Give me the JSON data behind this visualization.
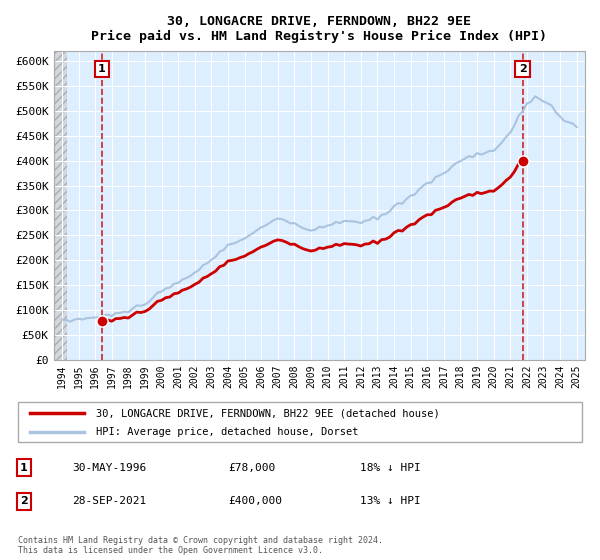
{
  "title": "30, LONGACRE DRIVE, FERNDOWN, BH22 9EE",
  "subtitle": "Price paid vs. HM Land Registry's House Price Index (HPI)",
  "legend_line1": "30, LONGACRE DRIVE, FERNDOWN, BH22 9EE (detached house)",
  "legend_line2": "HPI: Average price, detached house, Dorset",
  "footnote": "Contains HM Land Registry data © Crown copyright and database right 2024.\nThis data is licensed under the Open Government Licence v3.0.",
  "table_rows": [
    {
      "num": "1",
      "date": "30-MAY-1996",
      "price": "£78,000",
      "hpi": "18% ↓ HPI"
    },
    {
      "num": "2",
      "date": "28-SEP-2021",
      "price": "£400,000",
      "hpi": "13% ↓ HPI"
    }
  ],
  "sale1_year": 1996.41,
  "sale1_price": 78000,
  "sale2_year": 2021.74,
  "sale2_price": 400000,
  "hpi_color": "#aac4e0",
  "sold_color": "#cc0000",
  "vline_color": "#cc0000",
  "bg_plot": "#ddeeff",
  "ylim_min": 0,
  "ylim_max": 620000,
  "xlim_min": 1993.5,
  "xlim_max": 2025.5,
  "yticks": [
    0,
    50000,
    100000,
    150000,
    200000,
    250000,
    300000,
    350000,
    400000,
    450000,
    500000,
    550000,
    600000
  ],
  "ytick_labels": [
    "£0",
    "£50K",
    "£100K",
    "£150K",
    "£200K",
    "£250K",
    "£300K",
    "£350K",
    "£400K",
    "£450K",
    "£500K",
    "£550K",
    "£600K"
  ],
  "xticks": [
    1994,
    1995,
    1996,
    1997,
    1998,
    1999,
    2000,
    2001,
    2002,
    2003,
    2004,
    2005,
    2006,
    2007,
    2008,
    2009,
    2010,
    2011,
    2012,
    2013,
    2014,
    2015,
    2016,
    2017,
    2018,
    2019,
    2020,
    2021,
    2022,
    2023,
    2024,
    2025
  ],
  "control_years": [
    1994,
    1996,
    1997,
    1998,
    1999,
    2000,
    2001,
    2002,
    2003,
    2004,
    2005,
    2006,
    2007,
    2008,
    2009,
    2010,
    2011,
    2012,
    2013,
    2014,
    2015,
    2016,
    2017,
    2018,
    2019,
    2020,
    2021,
    2021.5,
    2022,
    2022.5,
    2023,
    2023.5,
    2024,
    2024.5,
    2025
  ],
  "control_vals": [
    78000,
    85000,
    90000,
    98000,
    115000,
    135000,
    155000,
    175000,
    200000,
    230000,
    245000,
    265000,
    285000,
    270000,
    260000,
    270000,
    280000,
    275000,
    285000,
    305000,
    330000,
    355000,
    375000,
    400000,
    415000,
    420000,
    455000,
    490000,
    510000,
    530000,
    520000,
    510000,
    490000,
    475000,
    465000
  ]
}
